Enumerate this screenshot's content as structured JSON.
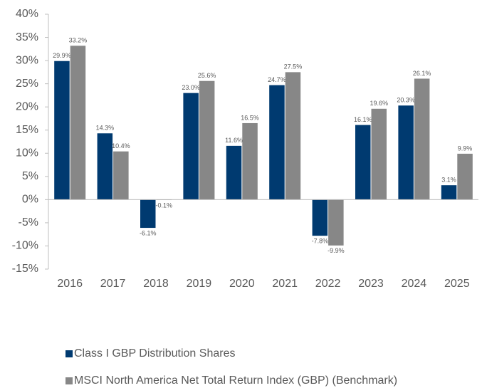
{
  "chart_data": {
    "type": "bar",
    "categories": [
      "2016",
      "2017",
      "2018",
      "2019",
      "2020",
      "2021",
      "2022",
      "2023",
      "2024",
      "2025"
    ],
    "series": [
      {
        "name": "Class I GBP Distribution Shares",
        "color": "#003a70",
        "values": [
          29.9,
          14.3,
          -6.1,
          23.0,
          11.6,
          24.7,
          -7.8,
          16.1,
          20.3,
          3.1
        ],
        "value_labels": [
          "29.9%",
          "14.3%",
          "-6.1%",
          "23.0%",
          "11.6%",
          "24.7%",
          "-7.8%",
          "16.1%",
          "20.3%",
          "3.1%"
        ]
      },
      {
        "name": "MSCI North America Net Total Return Index (GBP) (Benchmark)",
        "color": "#878787",
        "values": [
          33.2,
          10.4,
          -0.1,
          25.6,
          16.5,
          27.5,
          -9.9,
          19.6,
          26.1,
          9.9
        ],
        "value_labels": [
          "33.2%",
          "10.4%",
          "-0.1%",
          "25.6%",
          "16.5%",
          "27.5%",
          "-9.9%",
          "19.6%",
          "26.1%",
          "9.9%"
        ]
      }
    ],
    "ylim": [
      -15,
      40
    ],
    "yticks": [
      {
        "value": -15,
        "label": "-15%"
      },
      {
        "value": -10,
        "label": "-10%"
      },
      {
        "value": -5,
        "label": "-5%"
      },
      {
        "value": 0,
        "label": "0%"
      },
      {
        "value": 5,
        "label": "5%"
      },
      {
        "value": 10,
        "label": "10%"
      },
      {
        "value": 15,
        "label": "15%"
      },
      {
        "value": 20,
        "label": "20%"
      },
      {
        "value": 25,
        "label": "25%"
      },
      {
        "value": 30,
        "label": "30%"
      },
      {
        "value": 35,
        "label": "35%"
      },
      {
        "value": 40,
        "label": "40%"
      }
    ],
    "legend": "bottom"
  }
}
